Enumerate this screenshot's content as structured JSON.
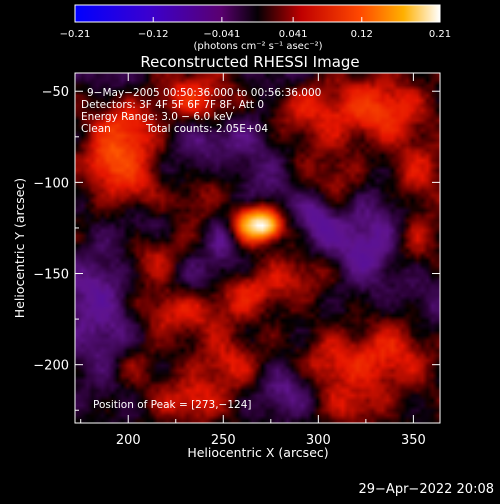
{
  "chart_data": {
    "type": "heatmap",
    "title": "Reconstructed RHESSI Image",
    "xlabel": "Heliocentric X (arcsec)",
    "ylabel": "Heliocentric Y (arcsec)",
    "xlim": [
      172,
      364
    ],
    "ylim": [
      -232,
      -40
    ],
    "x_ticks": [
      200,
      250,
      300,
      350
    ],
    "y_ticks": [
      -50,
      -100,
      -150,
      -200
    ],
    "x_tick_labels": [
      "200",
      "250",
      "300",
      "350"
    ],
    "y_tick_labels": [
      "−50",
      "−100",
      "−150",
      "−200"
    ],
    "colorbar": {
      "range": [
        -0.21,
        0.21
      ],
      "ticks": [
        -0.21,
        -0.12,
        -0.041,
        0.041,
        0.12,
        0.21
      ],
      "tick_labels": [
        "−0.21",
        "−0.12",
        "−0.041",
        "0.041",
        "0.12",
        "0.21"
      ],
      "unit_label": "(photons cm⁻² s⁻¹ asec⁻²)"
    },
    "peak": {
      "x": 273,
      "y": -124,
      "value": 0.21
    },
    "blobs": [
      {
        "x": 268,
        "y": -123,
        "sx": 8,
        "sy": 6,
        "v": 0.17
      },
      {
        "x": 272,
        "y": -124,
        "sx": 4,
        "sy": 3,
        "v": 0.06
      },
      {
        "x": 198,
        "y": -75,
        "sx": 12,
        "sy": 14,
        "v": 0.06
      },
      {
        "x": 188,
        "y": -90,
        "sx": 8,
        "sy": 8,
        "v": 0.04
      },
      {
        "x": 230,
        "y": -55,
        "sx": 18,
        "sy": 10,
        "v": 0.05
      },
      {
        "x": 290,
        "y": -62,
        "sx": 28,
        "sy": 14,
        "v": 0.045
      },
      {
        "x": 335,
        "y": -60,
        "sx": 14,
        "sy": 12,
        "v": 0.05
      },
      {
        "x": 205,
        "y": -105,
        "sx": 12,
        "sy": 10,
        "v": 0.04
      },
      {
        "x": 232,
        "y": -110,
        "sx": 12,
        "sy": 10,
        "v": 0.035
      },
      {
        "x": 248,
        "y": -90,
        "sx": 10,
        "sy": 10,
        "v": 0.035
      },
      {
        "x": 310,
        "y": -100,
        "sx": 14,
        "sy": 12,
        "v": 0.035
      },
      {
        "x": 350,
        "y": -95,
        "sx": 12,
        "sy": 14,
        "v": 0.04
      },
      {
        "x": 210,
        "y": -140,
        "sx": 14,
        "sy": 10,
        "v": 0.04
      },
      {
        "x": 230,
        "y": -170,
        "sx": 18,
        "sy": 10,
        "v": 0.05
      },
      {
        "x": 265,
        "y": -160,
        "sx": 14,
        "sy": 8,
        "v": 0.035
      },
      {
        "x": 290,
        "y": -150,
        "sx": 12,
        "sy": 8,
        "v": 0.03
      },
      {
        "x": 340,
        "y": -150,
        "sx": 10,
        "sy": 12,
        "v": 0.03
      },
      {
        "x": 335,
        "y": -195,
        "sx": 16,
        "sy": 14,
        "v": 0.05
      },
      {
        "x": 305,
        "y": -200,
        "sx": 10,
        "sy": 10,
        "v": 0.035
      },
      {
        "x": 252,
        "y": -200,
        "sx": 12,
        "sy": 10,
        "v": 0.04
      },
      {
        "x": 232,
        "y": -220,
        "sx": 12,
        "sy": 8,
        "v": 0.045
      },
      {
        "x": 200,
        "y": -200,
        "sx": 10,
        "sy": 10,
        "v": 0.035
      },
      {
        "x": 352,
        "y": -130,
        "sx": 8,
        "sy": 10,
        "v": 0.03
      },
      {
        "x": 318,
        "y": -222,
        "sx": 10,
        "sy": 8,
        "v": 0.035
      },
      {
        "x": 282,
        "y": -215,
        "sx": 10,
        "sy": 10,
        "v": -0.04
      },
      {
        "x": 272,
        "y": -75,
        "sx": 14,
        "sy": 12,
        "v": -0.03
      },
      {
        "x": 235,
        "y": -155,
        "sx": 10,
        "sy": 12,
        "v": -0.035
      },
      {
        "x": 330,
        "y": -125,
        "sx": 14,
        "sy": 30,
        "v": -0.04
      },
      {
        "x": 190,
        "y": -185,
        "sx": 12,
        "sy": 22,
        "v": -0.045
      },
      {
        "x": 250,
        "y": -130,
        "sx": 6,
        "sy": 14,
        "v": -0.035
      },
      {
        "x": 300,
        "y": -118,
        "sx": 6,
        "sy": 12,
        "v": -0.03
      }
    ]
  },
  "annotations": {
    "time_range": "9−May−2005 00:50:36.000 to 00:56:36.000",
    "detectors": "Detectors: 3F 4F 5F 6F 7F 8F, Att 0",
    "energy": "Energy Range: 3.0 − 6.0 keV",
    "algorithm": "Clean",
    "total_counts": "Total counts: 2.05E+04",
    "peak_position": "Position of Peak = [273,−124]"
  },
  "footer": {
    "timestamp": "29−Apr−2022 20:08"
  }
}
